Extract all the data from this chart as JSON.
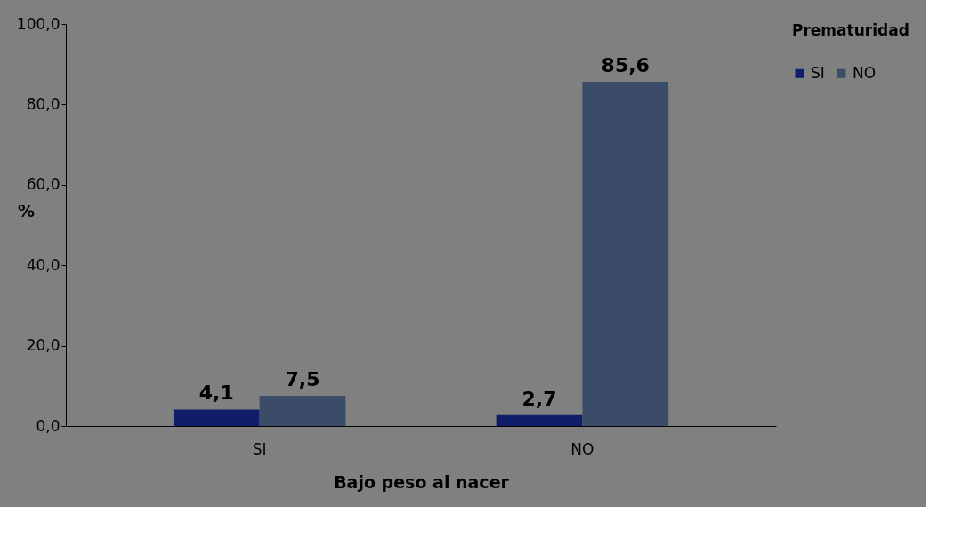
{
  "chart_data": {
    "type": "bar",
    "xlabel": "Bajo peso al nacer",
    "ylabel": "%",
    "legend_title": "Prematuridad",
    "categories": [
      "SI",
      "NO"
    ],
    "series": [
      {
        "name": "SI",
        "color": "#0f1d6b",
        "values": [
          4.1,
          2.7
        ],
        "value_labels": [
          "4,1",
          "2,7"
        ]
      },
      {
        "name": "NO",
        "color": "#3b4c68",
        "values": [
          7.5,
          85.6
        ],
        "value_labels": [
          "7,5",
          "85,6"
        ]
      }
    ],
    "ylim": [
      0,
      100
    ],
    "yticks": [
      {
        "value": 0,
        "label": "0,0"
      },
      {
        "value": 20,
        "label": "20,0"
      },
      {
        "value": 40,
        "label": "40,0"
      },
      {
        "value": 60,
        "label": "60,0"
      },
      {
        "value": 80,
        "label": "80,0"
      },
      {
        "value": 100,
        "label": "100,0"
      }
    ],
    "grid": false,
    "legend": "right"
  }
}
